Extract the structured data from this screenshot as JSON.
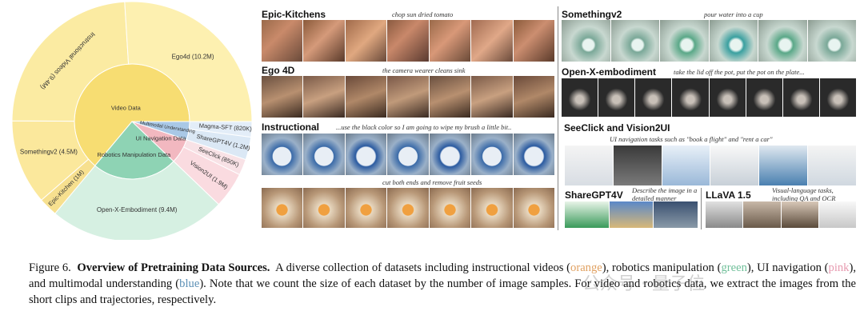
{
  "chart_data": {
    "type": "sunburst",
    "title": "",
    "inner_ring": [
      {
        "label": "Video Data",
        "color": "#f7dd72"
      },
      {
        "label": "Robotics Manipulation Data",
        "color": "#8ed3b4"
      },
      {
        "label": "UI Navigation Data",
        "color": "#f2b8c0"
      },
      {
        "label": "Multimodal Understanding",
        "color": "#a9c8e6"
      }
    ],
    "outer_ring": [
      {
        "label": "Ego4d (10.2M)",
        "parent": "Video Data",
        "value": 10.2,
        "color": "#fdf0b0"
      },
      {
        "label": "Instructional Videos (9.4M)",
        "parent": "Video Data",
        "value": 9.4,
        "color": "#fbeba2"
      },
      {
        "label": "Somethingv2 (4.5M)",
        "parent": "Video Data",
        "value": 4.5,
        "color": "#fbe89c"
      },
      {
        "label": "Epic-Kitchen (1M)",
        "parent": "Video Data",
        "value": 1,
        "color": "#f7e08f"
      },
      {
        "label": "Open-X-Embodiment (9.4M)",
        "parent": "Robotics Manipulation Data",
        "value": 9.4,
        "color": "#d6f0e2"
      },
      {
        "label": "Vision2UI (1.9M)",
        "parent": "UI Navigation Data",
        "value": 1.9,
        "color": "#fadbe0"
      },
      {
        "label": "SeeClick (850K)",
        "parent": "UI Navigation Data",
        "value": 0.85,
        "color": "#f8e2e6"
      },
      {
        "label": "ShareGPT4V (1.2M)",
        "parent": "Multimodal Understanding",
        "value": 1.2,
        "color": "#dbe8f5"
      },
      {
        "label": "Magma-SFT (820K)",
        "parent": "Multimodal Understanding",
        "value": 0.82,
        "color": "#e3edf8"
      }
    ]
  },
  "panels": {
    "epic": {
      "title": "Epic-Kitchens",
      "caption": "chop sun dried tomato"
    },
    "ego": {
      "title": "Ego 4D",
      "caption": "the camera wearer cleans sink"
    },
    "instr": {
      "title": "Instructional",
      "caption": "...use the black color so I am going to wipe my brush a little bit..",
      "caption2": "cut both ends and remove fruit seeds"
    },
    "sthv2": {
      "title": "Somethingv2",
      "caption": "pour water into a cup"
    },
    "oxe": {
      "title": "Open-X-embodiment",
      "caption": "take the lid off the pot, put the pot on the plate..."
    },
    "seeclick": {
      "title": "SeeClick and Vision2UI",
      "caption": "UI navigation tasks such as \"book a flight\" and \"rent a car\""
    },
    "sharegpt": {
      "title": "ShareGPT4V",
      "caption": "Describe the image in a detailed manner"
    },
    "llava": {
      "title": "LLaVA 1.5",
      "caption": "Visual-language tasks, including QA and OCR"
    }
  },
  "figure_caption": {
    "label": "Figure 6.",
    "heading": "Overview of Pretraining Data Sources.",
    "body_1": "A diverse collection of datasets including instructional videos (",
    "w_orange": "orange",
    "body_2": "), robotics manipulation (",
    "w_green": "green",
    "body_3": "), UI navigation (",
    "w_pink": "pink",
    "body_4": "), and multimodal understanding (",
    "w_blue": "blue",
    "body_5": "). Note that we count the size of each dataset by the number of image samples. For video and robotics data, we extract the images from the short clips and trajectories, respectively."
  },
  "watermark": "公众号 · 量子位"
}
